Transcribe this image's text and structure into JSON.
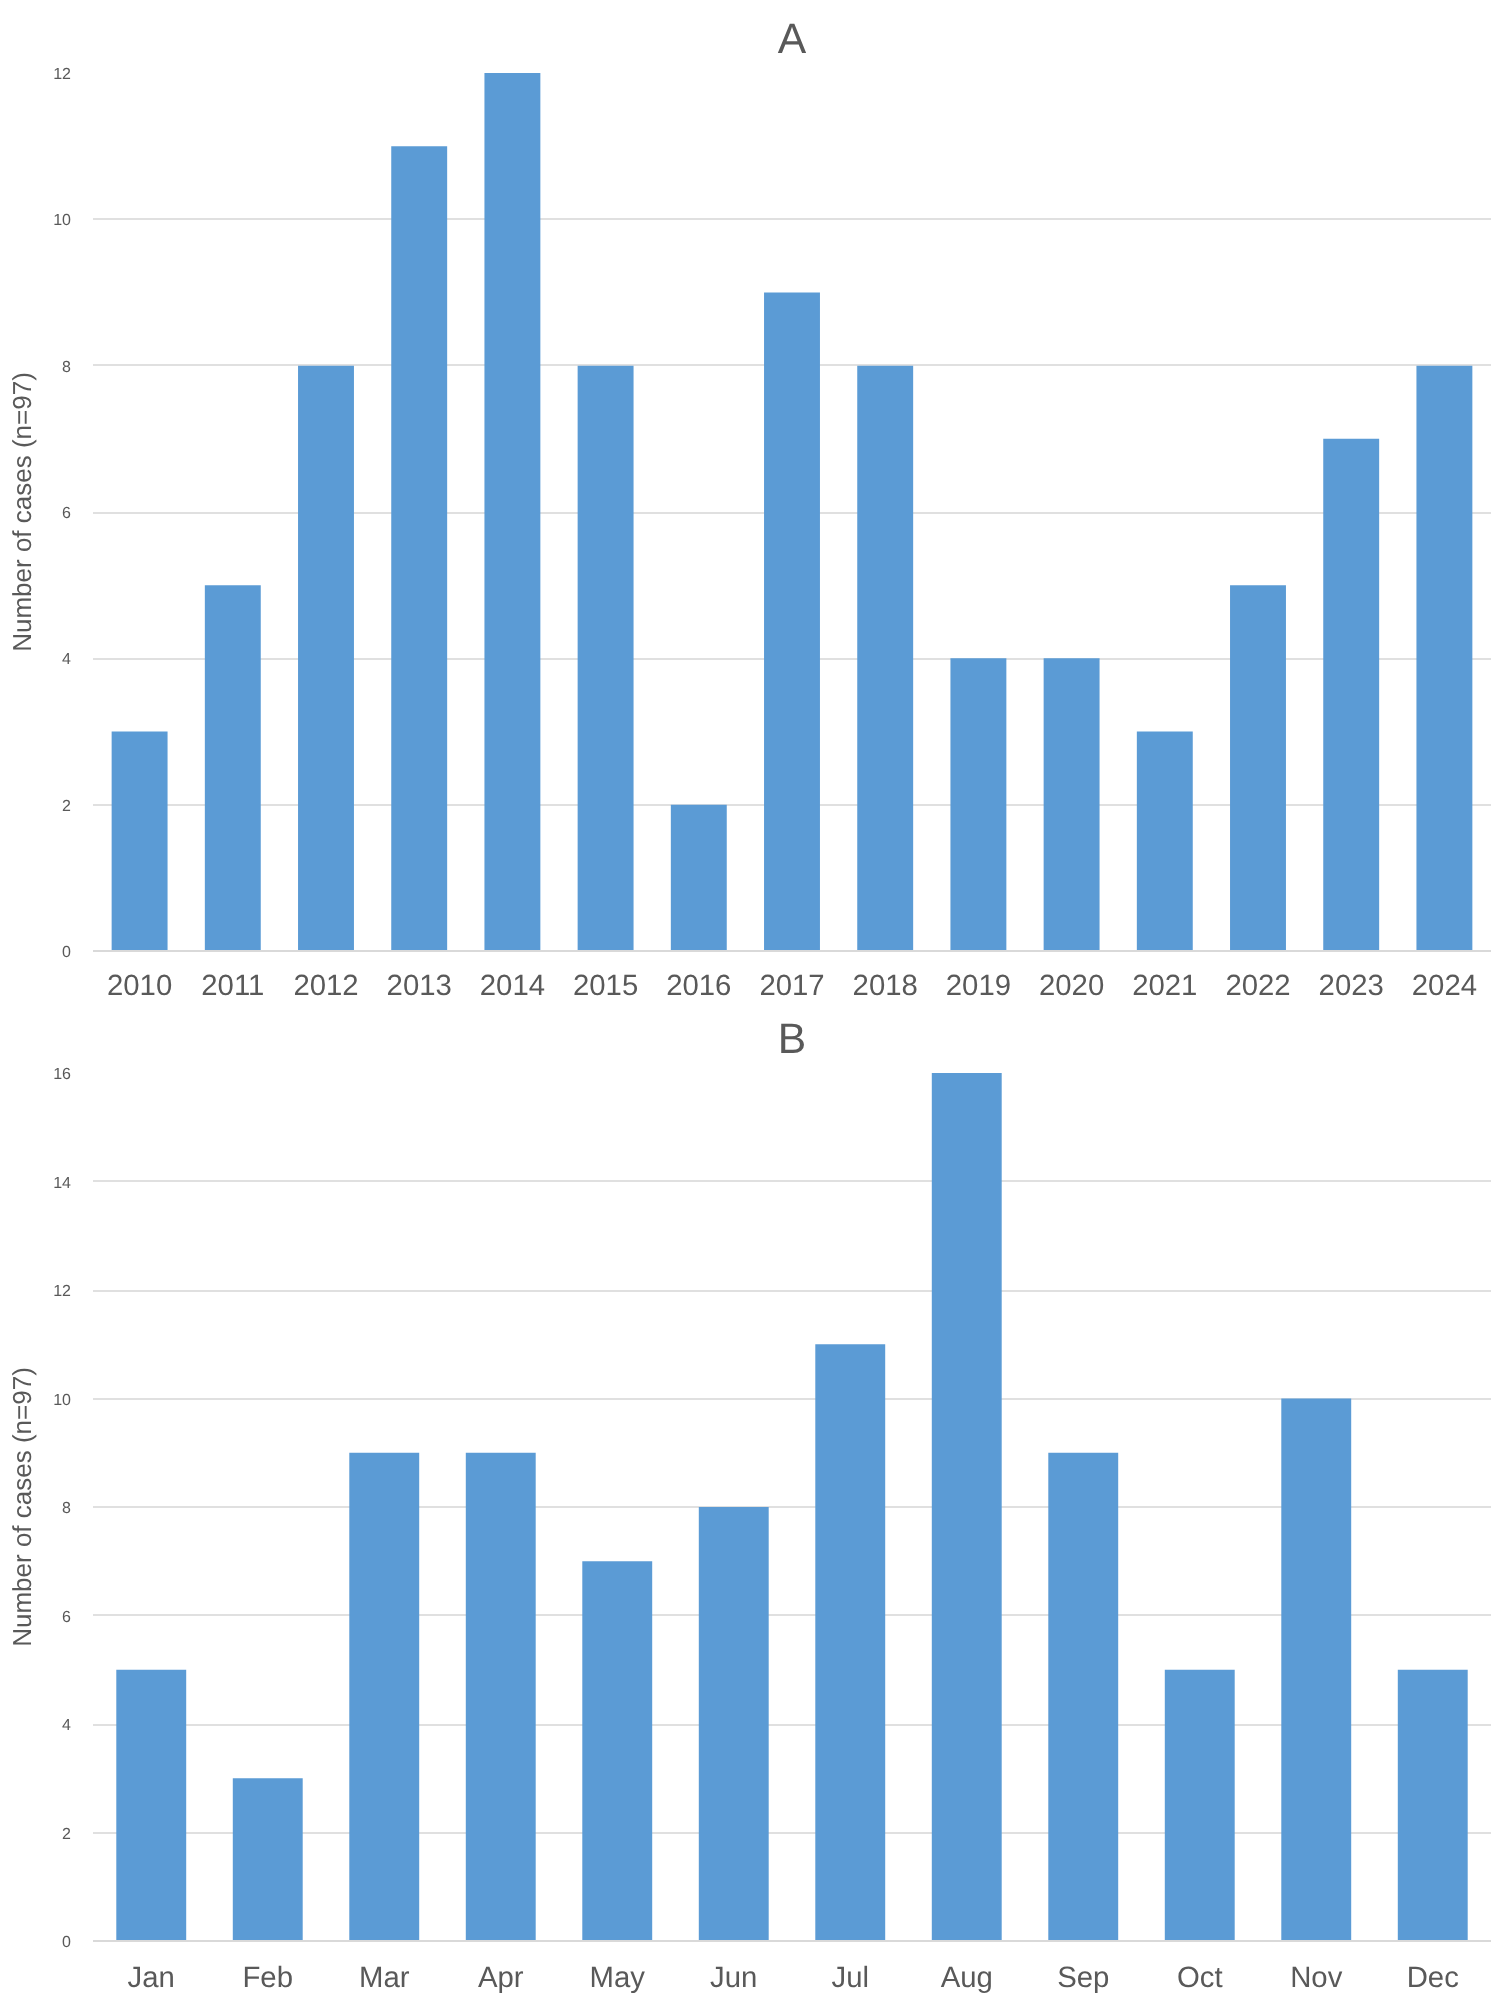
{
  "chart_data": [
    {
      "type": "bar",
      "title": "A",
      "ylabel": "Number of cases (n=97)",
      "categories": [
        "2010",
        "2011",
        "2012",
        "2013",
        "2014",
        "2015",
        "2016",
        "2017",
        "2018",
        "2019",
        "2020",
        "2021",
        "2022",
        "2023",
        "2024"
      ],
      "values": [
        3,
        5,
        8,
        11,
        12,
        8,
        2,
        9,
        8,
        4,
        4,
        3,
        5,
        7,
        8
      ],
      "color": "#5b9bd5",
      "ylim": [
        0,
        12
      ],
      "yticks": [
        0,
        2,
        4,
        6,
        8,
        10,
        12
      ],
      "grid": "y"
    },
    {
      "type": "bar",
      "title": "B",
      "ylabel": "Number of cases (n=97)",
      "categories": [
        "Jan",
        "Feb",
        "Mar",
        "Apr",
        "May",
        "Jun",
        "Jul",
        "Aug",
        "Sep",
        "Oct",
        "Nov",
        "Dec"
      ],
      "values": [
        5,
        3,
        9,
        9,
        7,
        8,
        11,
        16,
        9,
        5,
        10,
        5
      ],
      "color": "#5b9bd5",
      "ylim": [
        0,
        16
      ],
      "yticks": [
        0,
        2,
        4,
        6,
        8,
        10,
        12,
        14,
        16
      ],
      "grid": "y"
    }
  ]
}
